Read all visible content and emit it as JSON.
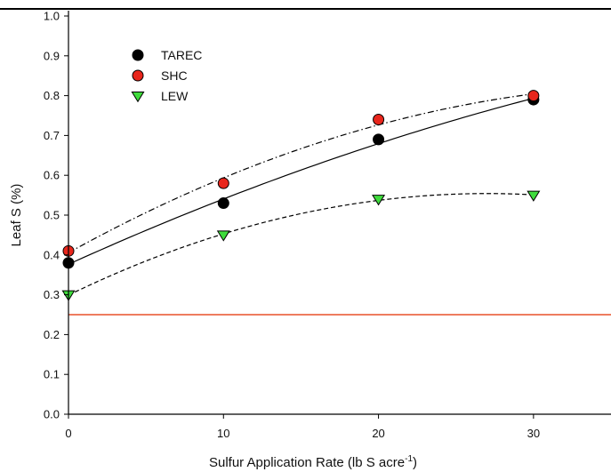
{
  "chart_data": {
    "type": "scatter",
    "xlabel": "Sulfur Application Rate (lb S acre",
    "xlabel_superscript": "-1",
    "xlabel_suffix": ")",
    "ylabel": "Leaf S (%)",
    "xlim": [
      0,
      35
    ],
    "ylim": [
      0.0,
      1.0
    ],
    "x_ticks": [
      0,
      10,
      20,
      30
    ],
    "y_ticks": [
      0.0,
      0.1,
      0.2,
      0.3,
      0.4,
      0.5,
      0.6,
      0.7,
      0.8,
      0.9,
      1.0
    ],
    "grid": false,
    "legend_position": "top-left",
    "reference_line": {
      "y": 0.25,
      "color": "#e8502a"
    },
    "series": [
      {
        "name": "TAREC",
        "marker": "circle",
        "color": "#000000",
        "line_style": "solid",
        "x": [
          0,
          10,
          20,
          30
        ],
        "y": [
          0.38,
          0.53,
          0.69,
          0.79
        ]
      },
      {
        "name": "SHC",
        "marker": "circle",
        "color": "#e8261c",
        "line_style": "dash-dot",
        "x": [
          0,
          10,
          20,
          30
        ],
        "y": [
          0.41,
          0.58,
          0.74,
          0.8
        ]
      },
      {
        "name": "LEW",
        "marker": "triangle-down",
        "color": "#3fdc3c",
        "line_style": "dashed",
        "x": [
          0,
          10,
          20,
          30
        ],
        "y": [
          0.3,
          0.45,
          0.54,
          0.55
        ]
      }
    ]
  }
}
